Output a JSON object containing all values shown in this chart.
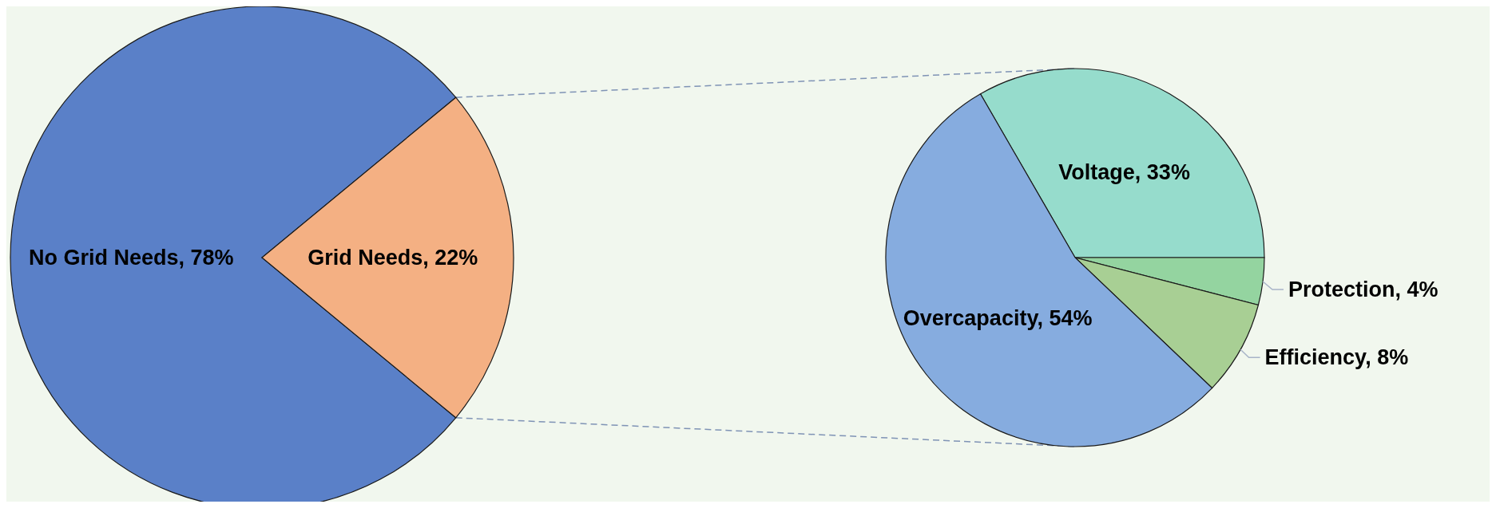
{
  "chart_data": [
    {
      "type": "pie",
      "categories": [
        "No Grid Needs",
        "Grid Needs"
      ],
      "values": [
        78,
        22
      ],
      "value_labels": [
        "78%",
        "22%"
      ],
      "colors": [
        "#5a80c8",
        "#f4b083"
      ],
      "legend": false
    },
    {
      "type": "pie",
      "categories": [
        "Voltage",
        "Protection",
        "Efficiency",
        "Overcapacity"
      ],
      "values": [
        33,
        4,
        8,
        54
      ],
      "value_labels": [
        "33%",
        "4%",
        "8%",
        "54%"
      ],
      "colors": [
        "#96dccc",
        "#94d4a0",
        "#a8cf94",
        "#86acdf"
      ],
      "legend": false
    }
  ]
}
